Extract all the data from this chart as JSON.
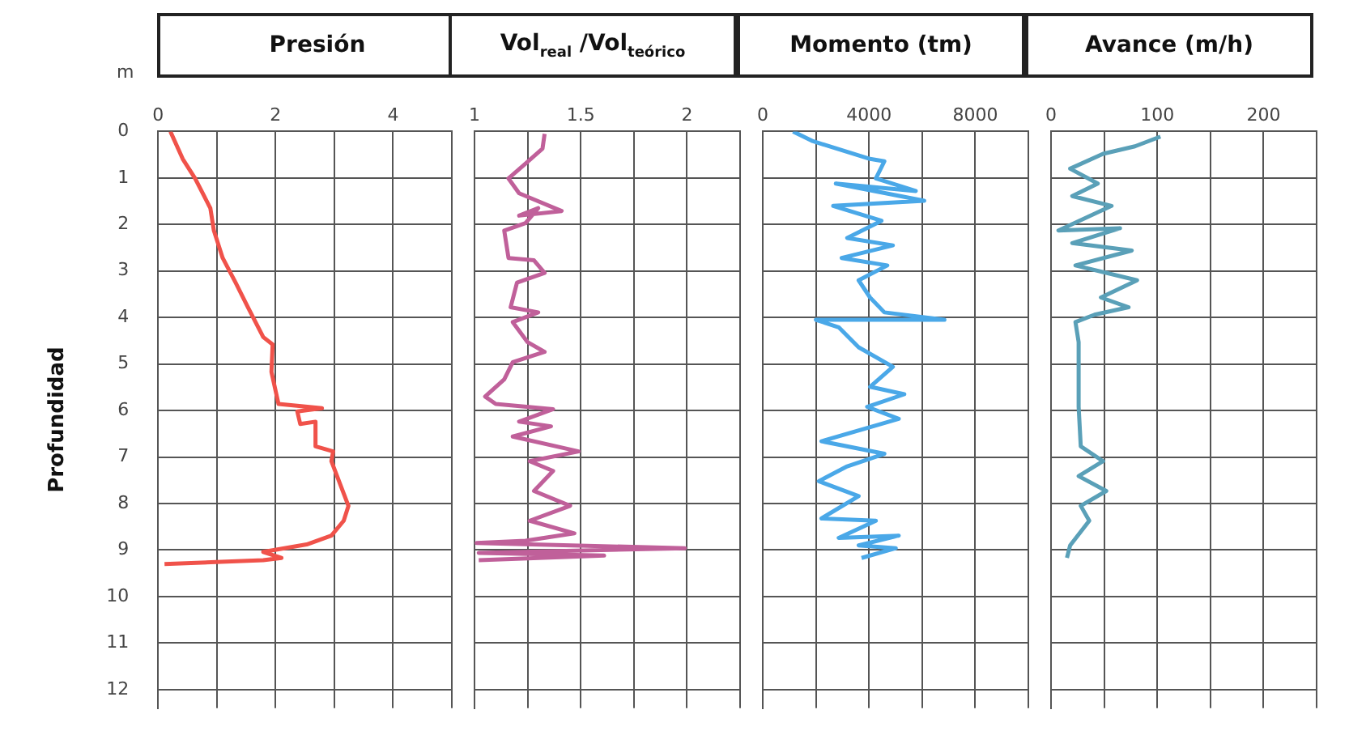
{
  "chart_data": [
    {
      "type": "line",
      "title": "Presión",
      "ylabel": "Profundidad",
      "annotations": [
        "m"
      ],
      "xlim": [
        0,
        5
      ],
      "xticks": [
        0,
        {
          "value": 1,
          "label": null
        },
        2,
        {
          "value": 3,
          "label": null
        },
        4,
        {
          "value": 5,
          "label": null
        }
      ],
      "ylim": [
        12.4,
        0
      ],
      "yticks": [
        0,
        1,
        2,
        3,
        4,
        5,
        6,
        7,
        8,
        9,
        10,
        11,
        12
      ],
      "grid": true,
      "marker": "none",
      "legend": false,
      "series": [
        {
          "color": "#f0524a",
          "x": [
            0.21,
            0.42,
            0.63,
            0.89,
            0.95,
            1.1,
            1.32,
            1.53,
            1.79,
            1.95,
            1.93,
            2.05,
            2.79,
            2.37,
            2.42,
            2.68,
            2.68,
            2.98,
            2.95,
            3.11,
            3.24,
            3.16,
            2.95,
            2.53,
            1.79,
            2.1,
            1.79,
            0.11
          ],
          "values": [
            0,
            0.59,
            1.01,
            1.65,
            2.13,
            2.72,
            3.25,
            3.78,
            4.42,
            4.58,
            5.17,
            5.86,
            5.95,
            6.02,
            6.29,
            6.24,
            6.77,
            6.88,
            7.09,
            7.62,
            8.05,
            8.37,
            8.69,
            8.88,
            9.04,
            9.17,
            9.22,
            9.3
          ]
        }
      ]
    },
    {
      "type": "line",
      "title": "Vol$_{real}$ /Vol$_{teórico}$",
      "xlim": [
        1,
        2.25
      ],
      "xticks": [
        1,
        {
          "value": 1.25,
          "label": null
        },
        1.5,
        {
          "value": 1.75,
          "label": null
        },
        2,
        {
          "value": 2.25,
          "label": null
        }
      ],
      "ylim": [
        12.4,
        0
      ],
      "yticks": [
        0,
        1,
        2,
        3,
        4,
        5,
        6,
        7,
        8,
        9,
        10,
        11,
        12
      ],
      "tick_labels": "x",
      "grid": true,
      "marker": "none",
      "legend": false,
      "series": [
        {
          "color": "#c0609a",
          "x": [
            1.33,
            1.32,
            1.24,
            1.16,
            1.21,
            1.41,
            1.21,
            1.3,
            1.24,
            1.14,
            1.16,
            1.28,
            1.33,
            1.2,
            1.17,
            1.3,
            1.18,
            1.25,
            1.33,
            1.18,
            1.14,
            1.05,
            1.1,
            1.37,
            1.21,
            1.36,
            1.18,
            1.49,
            1.26,
            1.37,
            1.28,
            1.45,
            1.26,
            1.47,
            1.24,
            1.01,
            1.99,
            1.02,
            1.61,
            1.02
          ],
          "values": [
            0.05,
            0.37,
            0.69,
            1.01,
            1.33,
            1.71,
            1.81,
            1.65,
            1.97,
            2.13,
            2.72,
            2.77,
            3.04,
            3.25,
            3.78,
            3.89,
            4.1,
            4.53,
            4.74,
            4.96,
            5.33,
            5.7,
            5.86,
            5.97,
            6.24,
            6.34,
            6.56,
            6.88,
            7.09,
            7.3,
            7.73,
            8.05,
            8.37,
            8.64,
            8.8,
            8.85,
            8.96,
            9.06,
            9.12,
            9.22
          ]
        }
      ]
    },
    {
      "type": "line",
      "title": "Momento (tm)",
      "xlim": [
        0,
        10000
      ],
      "xticks": [
        0,
        {
          "value": 2000,
          "label": null
        },
        4000,
        {
          "value": 6000,
          "label": null
        },
        8000,
        {
          "value": 10000,
          "label": null
        }
      ],
      "ylim": [
        12.4,
        0
      ],
      "yticks": [
        0,
        1,
        2,
        3,
        4,
        5,
        6,
        7,
        8,
        9,
        10,
        11,
        12
      ],
      "tick_labels": "x",
      "grid": true,
      "marker": "none",
      "legend": false,
      "series": [
        {
          "color": "#4aa8e8",
          "x": [
            1140,
            1890,
            4040,
            4580,
            4260,
            5760,
            2750,
            6080,
            2650,
            4470,
            3180,
            4900,
            2970,
            4690,
            3610,
            4040,
            4580,
            6840,
            2000,
            2860,
            3610,
            4900,
            4040,
            5330,
            3930,
            5120,
            2210,
            4580,
            3180,
            2110,
            3610,
            2210,
            4260,
            2860,
            5120,
            3610,
            5010,
            3720
          ],
          "values": [
            0,
            0.21,
            0.59,
            0.64,
            1.01,
            1.28,
            1.12,
            1.49,
            1.6,
            1.92,
            2.29,
            2.45,
            2.72,
            2.88,
            3.2,
            3.57,
            3.89,
            4.05,
            4.05,
            4.21,
            4.64,
            5.06,
            5.49,
            5.65,
            5.92,
            6.18,
            6.66,
            6.93,
            7.2,
            7.52,
            7.84,
            8.32,
            8.37,
            8.74,
            8.69,
            8.9,
            8.96,
            9.17
          ]
        }
      ]
    },
    {
      "type": "line",
      "title": "Avance (m/h)",
      "xlim": [
        0,
        250
      ],
      "xticks": [
        0,
        {
          "value": 50,
          "label": null
        },
        100,
        {
          "value": 150,
          "label": null
        },
        200,
        {
          "value": 250,
          "label": null
        }
      ],
      "ylim": [
        12.4,
        0
      ],
      "yticks": [
        0,
        1,
        2,
        3,
        4,
        5,
        6,
        7,
        8,
        9,
        10,
        11,
        12
      ],
      "tick_labels": "x",
      "grid": true,
      "marker": "none",
      "legend": false,
      "series": [
        {
          "color": "#5aa0b8",
          "x": [
            103,
            79,
            49,
            18,
            44,
            20,
            57,
            7,
            65,
            20,
            76,
            23,
            81,
            47,
            73,
            41,
            23,
            26,
            26,
            28,
            49,
            26,
            52,
            28,
            36,
            18,
            15
          ],
          "values": [
            0.11,
            0.32,
            0.48,
            0.8,
            1.12,
            1.39,
            1.6,
            2.13,
            2.08,
            2.4,
            2.56,
            2.88,
            3.2,
            3.57,
            3.78,
            3.94,
            4.1,
            4.53,
            5.92,
            6.77,
            7.09,
            7.41,
            7.73,
            8.05,
            8.37,
            8.9,
            9.17
          ]
        }
      ]
    }
  ]
}
